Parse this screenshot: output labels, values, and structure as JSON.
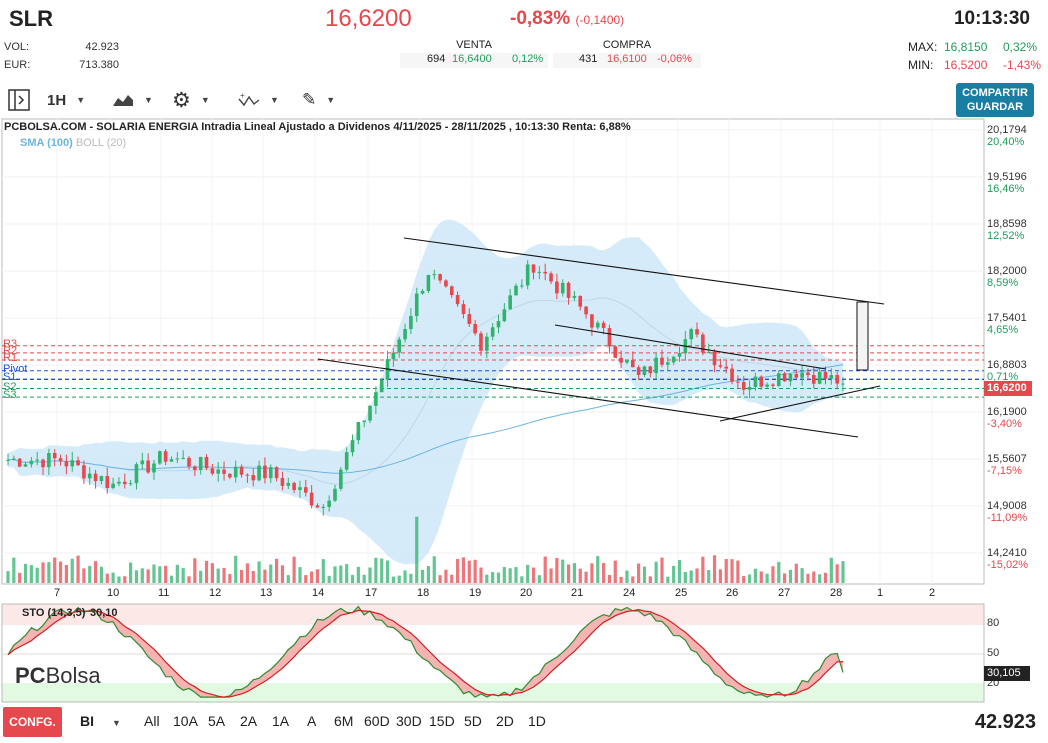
{
  "header": {
    "ticker": "SLR",
    "price": "16,6200",
    "change": "-0,83%",
    "change_abs": "(-0,1400)",
    "time": "10:13:30",
    "vol_label": "VOL:",
    "vol": "42.923",
    "eur_label": "EUR:",
    "eur": "713.380",
    "venta_label": "VENTA",
    "venta_qty": "694",
    "venta_price": "16,6400",
    "venta_pct": "0,12%",
    "compra_label": "COMPRA",
    "compra_qty": "431",
    "compra_price": "16,6100",
    "compra_pct": "-0,06%",
    "max_label": "MAX:",
    "max": "16,8150",
    "max_pct": "0,32%",
    "min_label": "MIN:",
    "min": "16,5200",
    "min_pct": "-1,43%"
  },
  "toolbar": {
    "interval": "1H",
    "share_line1": "COMPARTIR",
    "share_line2": "GUARDAR"
  },
  "chart": {
    "title": "PCBOLSA.COM - SOLARIA ENERGIA Intradia Lineal Ajustado a Dividenos 4/11/2025 - 28/11/2025 , 10:13:30 Renta: 6,88%",
    "sma": "SMA (100)",
    "boll": "BOLL (20)",
    "current": "16,6200",
    "colors": {
      "up": "#2fb36d",
      "down": "#e5484d",
      "band": "#cfe8f8",
      "sma": "#6cb4e0"
    },
    "pivots": [
      {
        "label": "R3",
        "value": 17.15,
        "color": "#e5484d"
      },
      {
        "label": "R2",
        "value": 17.05,
        "color": "#e5484d"
      },
      {
        "label": "R1",
        "value": 16.95,
        "color": "#e5484d"
      },
      {
        "label": "Pivot",
        "value": 16.8,
        "color": "#1d4fd8"
      },
      {
        "label": "S1",
        "value": 16.68,
        "color": "#1d4fd8"
      },
      {
        "label": "S2",
        "value": 16.55,
        "color": "#1e9e5a"
      },
      {
        "label": "S3",
        "value": 16.43,
        "color": "#1e9e5a"
      }
    ]
  },
  "yaxis": [
    {
      "v": "20,1794",
      "p": "20,40%"
    },
    {
      "v": "19,5196",
      "p": "16,46%"
    },
    {
      "v": "18,8598",
      "p": "12,52%"
    },
    {
      "v": "18,2000",
      "p": "8,59%"
    },
    {
      "v": "17,5401",
      "p": "4,65%"
    },
    {
      "v": "16,8803",
      "p": "0,71%"
    },
    {
      "v": "16,1900",
      "p": "-3,40%"
    },
    {
      "v": "15,5607",
      "p": "-7,15%"
    },
    {
      "v": "14,9008",
      "p": "-11,09%"
    },
    {
      "v": "14,2410",
      "p": "-15,02%"
    }
  ],
  "xaxis": [
    "7",
    "10",
    "11",
    "12",
    "13",
    "14",
    "17",
    "18",
    "19",
    "20",
    "21",
    "24",
    "25",
    "26",
    "27",
    "28",
    "1",
    "2"
  ],
  "chart_data": {
    "type": "candlestick",
    "x": [
      "7",
      "10",
      "11",
      "12",
      "13",
      "14",
      "17",
      "18",
      "19",
      "20",
      "21",
      "24",
      "25",
      "26",
      "27",
      "28"
    ],
    "close": [
      15.55,
      15.2,
      15.6,
      15.4,
      15.35,
      14.9,
      16.5,
      18.2,
      17.2,
      18.3,
      17.6,
      16.7,
      17.3,
      16.6,
      16.8,
      16.62
    ],
    "ylim": [
      14.0,
      20.2
    ]
  },
  "stochastic": {
    "label": "STO (14,3,5)",
    "value": "30,10",
    "current": "30,105",
    "levels": [
      "80",
      "50",
      "20"
    ]
  },
  "bottom": {
    "config": "CONFG.",
    "bi": "BI",
    "ranges": [
      "All",
      "10A",
      "5A",
      "2A",
      "1A",
      "A",
      "6M",
      "60D",
      "30D",
      "15D",
      "5D",
      "2D",
      "1D"
    ],
    "volume": "42.923"
  }
}
